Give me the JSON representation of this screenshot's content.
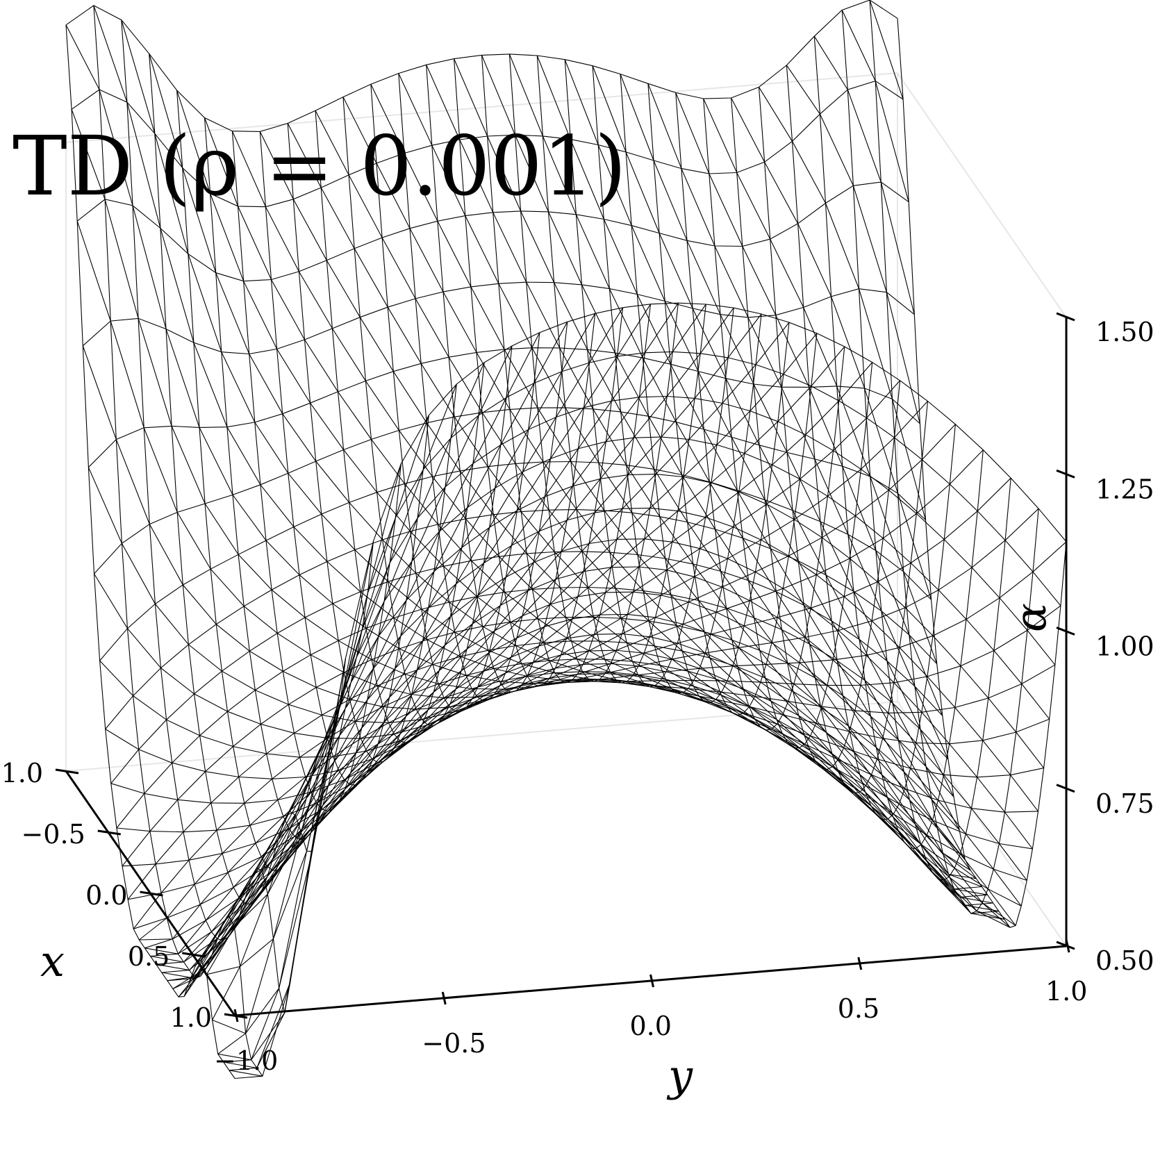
{
  "chart_data": {
    "type": "surface",
    "title": "TD (ρ = 0.001)",
    "xlabel": "x",
    "ylabel": "y",
    "zlabel": "α",
    "xlim": [
      -1.0,
      1.0
    ],
    "ylim": [
      -1.0,
      1.0
    ],
    "zlim": [
      0.5,
      1.5
    ],
    "x_ticks": [
      "−1.0",
      "−0.5",
      "0.0",
      "0.5",
      "1.0"
    ],
    "y_ticks": [
      "−1.0",
      "−0.5",
      "0.0",
      "0.5",
      "1.0"
    ],
    "z_ticks": [
      "0.50",
      "0.75",
      "1.00",
      "1.25",
      "1.50"
    ],
    "wireframe": true,
    "grid": false
  }
}
